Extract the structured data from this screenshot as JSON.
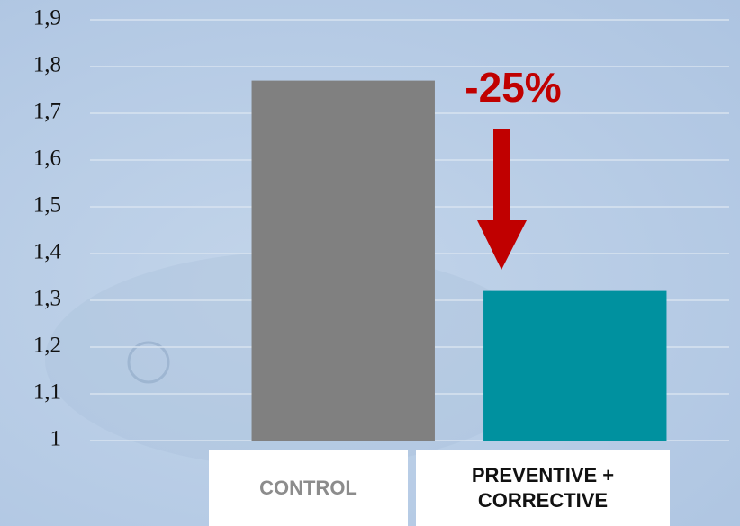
{
  "chart_data": {
    "type": "bar",
    "categories": [
      "CONTROL",
      "PREVENTIVE + CORRECTIVE"
    ],
    "values": [
      1.77,
      1.32
    ],
    "colors": [
      "#808080",
      "#00919f"
    ],
    "category_label_colors": [
      "#8c8c8c",
      "#111111"
    ],
    "ylim": [
      1,
      1.9
    ],
    "yticks": [
      1,
      {
        "value": 1.1,
        "label": "1,1"
      },
      {
        "value": 1.2,
        "label": "1,2"
      },
      {
        "value": 1.3,
        "label": "1,3"
      },
      {
        "value": 1.4,
        "label": "1,4"
      },
      {
        "value": 1.5,
        "label": "1,5"
      },
      {
        "value": 1.6,
        "label": "1,6"
      },
      {
        "value": 1.7,
        "label": "1,7"
      },
      {
        "value": 1.8,
        "label": "1,8"
      },
      {
        "value": 1.9,
        "label": "1,9"
      }
    ],
    "grid": true,
    "annotation": {
      "text": "-25%",
      "color": "#c00000"
    }
  }
}
